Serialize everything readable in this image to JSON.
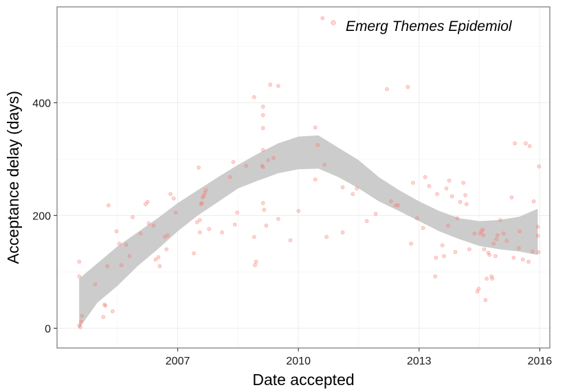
{
  "chart_data": {
    "type": "scatter",
    "xlabel": "Date accepted",
    "ylabel": "Acceptance delay (days)",
    "xlim": [
      2004.0,
      2016.25
    ],
    "ylim": [
      -35,
      570
    ],
    "x_ticks": [
      2007,
      2010,
      2013,
      2016
    ],
    "x_tick_labels": [
      "2007",
      "2010",
      "2013",
      "2016"
    ],
    "y_ticks": [
      0,
      200,
      400
    ],
    "y_tick_labels": [
      "0",
      "200",
      "400"
    ],
    "grid": true,
    "legend_position": "top-right",
    "colors": {
      "points": "#f8766d",
      "band": "#cccccc",
      "grid_major": "#ebebeb",
      "grid_minor": "#f5f5f5",
      "panel_border": "#7f7f7f",
      "ticks": "#333333"
    },
    "series": [
      {
        "name": "Emerg Themes Epidemiol",
        "points": [
          [
            2004.55,
            118
          ],
          [
            2004.55,
            92
          ],
          [
            2004.55,
            5
          ],
          [
            2004.58,
            2
          ],
          [
            2004.6,
            12
          ],
          [
            2004.62,
            22
          ],
          [
            2004.95,
            78
          ],
          [
            2005.15,
            20
          ],
          [
            2005.18,
            42
          ],
          [
            2005.2,
            40
          ],
          [
            2005.25,
            110
          ],
          [
            2005.28,
            218
          ],
          [
            2005.38,
            30
          ],
          [
            2005.48,
            172
          ],
          [
            2005.55,
            150
          ],
          [
            2005.6,
            112
          ],
          [
            2005.72,
            148
          ],
          [
            2005.8,
            128
          ],
          [
            2005.88,
            197
          ],
          [
            2006.08,
            168
          ],
          [
            2006.2,
            220
          ],
          [
            2006.25,
            224
          ],
          [
            2006.28,
            186
          ],
          [
            2006.4,
            182
          ],
          [
            2006.45,
            122
          ],
          [
            2006.52,
            126
          ],
          [
            2006.55,
            110
          ],
          [
            2006.68,
            162
          ],
          [
            2006.72,
            140
          ],
          [
            2006.75,
            165
          ],
          [
            2006.82,
            238
          ],
          [
            2006.9,
            230
          ],
          [
            2006.95,
            205
          ],
          [
            2007.4,
            133
          ],
          [
            2007.48,
            188
          ],
          [
            2007.52,
            285
          ],
          [
            2007.55,
            170
          ],
          [
            2007.58,
            220
          ],
          [
            2007.6,
            222
          ],
          [
            2007.62,
            232
          ],
          [
            2007.65,
            235
          ],
          [
            2007.68,
            240
          ],
          [
            2007.7,
            245
          ],
          [
            2007.55,
            192
          ],
          [
            2007.78,
            176
          ],
          [
            2008.1,
            170
          ],
          [
            2008.3,
            268
          ],
          [
            2008.38,
            295
          ],
          [
            2008.42,
            184
          ],
          [
            2008.48,
            205
          ],
          [
            2008.7,
            288
          ],
          [
            2008.9,
            162
          ],
          [
            2008.92,
            112
          ],
          [
            2008.95,
            118
          ],
          [
            2008.9,
            410
          ],
          [
            2009.12,
            393
          ],
          [
            2009.12,
            378
          ],
          [
            2009.12,
            355
          ],
          [
            2009.12,
            316
          ],
          [
            2009.1,
            288
          ],
          [
            2009.12,
            286
          ],
          [
            2009.12,
            222
          ],
          [
            2009.15,
            210
          ],
          [
            2009.2,
            182
          ],
          [
            2009.25,
            298
          ],
          [
            2009.38,
            302
          ],
          [
            2009.3,
            432
          ],
          [
            2009.5,
            430
          ],
          [
            2009.5,
            194
          ],
          [
            2009.8,
            156
          ],
          [
            2010.0,
            208
          ],
          [
            2010.42,
            356
          ],
          [
            2010.42,
            264
          ],
          [
            2010.48,
            325
          ],
          [
            2010.6,
            550
          ],
          [
            2010.65,
            290
          ],
          [
            2010.7,
            162
          ],
          [
            2011.1,
            250
          ],
          [
            2011.1,
            170
          ],
          [
            2011.35,
            238
          ],
          [
            2011.45,
            248
          ],
          [
            2011.7,
            190
          ],
          [
            2011.92,
            203
          ],
          [
            2012.2,
            424
          ],
          [
            2012.3,
            225
          ],
          [
            2012.42,
            218
          ],
          [
            2012.48,
            218
          ],
          [
            2012.72,
            428
          ],
          [
            2012.8,
            150
          ],
          [
            2012.85,
            258
          ],
          [
            2012.95,
            195
          ],
          [
            2013.1,
            178
          ],
          [
            2013.15,
            268
          ],
          [
            2013.25,
            252
          ],
          [
            2013.4,
            92
          ],
          [
            2013.42,
            125
          ],
          [
            2013.45,
            238
          ],
          [
            2013.58,
            147
          ],
          [
            2013.62,
            128
          ],
          [
            2013.68,
            248
          ],
          [
            2013.72,
            182
          ],
          [
            2013.75,
            262
          ],
          [
            2013.82,
            234
          ],
          [
            2013.9,
            135
          ],
          [
            2013.95,
            195
          ],
          [
            2014.02,
            224
          ],
          [
            2014.1,
            258
          ],
          [
            2014.15,
            236
          ],
          [
            2014.18,
            220
          ],
          [
            2014.25,
            140
          ],
          [
            2014.38,
            168
          ],
          [
            2014.45,
            65
          ],
          [
            2014.48,
            70
          ],
          [
            2014.52,
            168
          ],
          [
            2014.55,
            172
          ],
          [
            2014.58,
            175
          ],
          [
            2014.6,
            165
          ],
          [
            2014.62,
            140
          ],
          [
            2014.65,
            50
          ],
          [
            2014.68,
            88
          ],
          [
            2014.72,
            134
          ],
          [
            2014.75,
            130
          ],
          [
            2014.8,
            92
          ],
          [
            2014.82,
            88
          ],
          [
            2014.85,
            150
          ],
          [
            2014.9,
            128
          ],
          [
            2014.92,
            158
          ],
          [
            2014.95,
            165
          ],
          [
            2015.02,
            192
          ],
          [
            2015.1,
            168
          ],
          [
            2015.18,
            155
          ],
          [
            2015.3,
            232
          ],
          [
            2015.35,
            125
          ],
          [
            2015.38,
            328
          ],
          [
            2015.48,
            142
          ],
          [
            2015.5,
            172
          ],
          [
            2015.58,
            122
          ],
          [
            2015.65,
            328
          ],
          [
            2015.72,
            118
          ],
          [
            2015.75,
            323
          ],
          [
            2015.82,
            136
          ],
          [
            2015.85,
            225
          ],
          [
            2015.95,
            180
          ],
          [
            2015.95,
            164
          ],
          [
            2015.97,
            135
          ],
          [
            2015.98,
            287
          ]
        ]
      }
    ],
    "smooth": {
      "x": [
        2004.55,
        2005.0,
        2005.5,
        2006.0,
        2006.5,
        2007.0,
        2007.5,
        2008.0,
        2008.5,
        2009.0,
        2009.5,
        2010.0,
        2010.5,
        2011.0,
        2011.5,
        2012.0,
        2012.5,
        2013.0,
        2013.5,
        2014.0,
        2014.5,
        2015.0,
        2015.5,
        2015.95
      ],
      "lower": [
        0,
        45,
        75,
        110,
        140,
        172,
        200,
        224,
        248,
        262,
        275,
        282,
        283,
        268,
        248,
        225,
        208,
        190,
        172,
        158,
        146,
        140,
        136,
        130
      ],
      "upper": [
        88,
        115,
        145,
        170,
        195,
        222,
        245,
        268,
        290,
        310,
        328,
        340,
        342,
        320,
        298,
        268,
        245,
        225,
        208,
        195,
        190,
        192,
        198,
        212
      ]
    }
  }
}
